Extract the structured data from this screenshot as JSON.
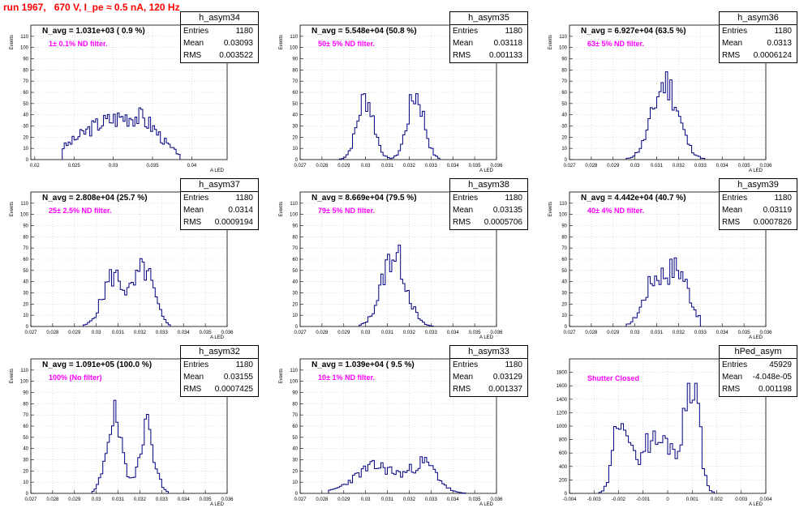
{
  "run_title": "run 1967,   670 V, I_pe ≈ 0.5 nA, 120 Hz",
  "colors": {
    "histogram": "#000080",
    "title": "#ff0000",
    "annotation": "#ff00ff"
  },
  "chart_data": [
    {
      "type": "histogram",
      "name": "h_asym34",
      "n_avg": "N_avg = 1.031e+03 ( 0.9 %)",
      "filter": "1± 0.1% ND filter.",
      "stats": {
        "entries": "1180",
        "mean": "0.03093",
        "rms": "0.003522"
      },
      "ylabel": "Events",
      "xlabel": "A_LED",
      "xlim": [
        0.0195,
        0.0445
      ],
      "ylim": [
        0,
        120
      ],
      "yticks": [
        0,
        10,
        20,
        30,
        40,
        50,
        60,
        70,
        80,
        90,
        100,
        110
      ],
      "xticks": [
        0.02,
        0.025,
        0.03,
        0.035,
        0.04
      ],
      "xtick_labels": [
        "0.02",
        "0.025",
        "0.03",
        "0.035",
        "0.04"
      ],
      "peaks": [
        {
          "c": 0.0295,
          "w": 0.004,
          "h": 33
        },
        {
          "c": 0.034,
          "w": 0.0022,
          "h": 18
        }
      ],
      "bin": 0.00025,
      "range": [
        0.0235,
        0.0385
      ],
      "seed": 3
    },
    {
      "type": "histogram",
      "name": "h_asym35",
      "n_avg": "N_avg = 5.548e+04 (50.8 %)",
      "filter": "50± 5% ND filter.",
      "stats": {
        "entries": "1180",
        "mean": "0.03118",
        "rms": "0.001133"
      },
      "ylabel": "Events",
      "xlabel": "A_LED",
      "xlim": [
        0.027,
        0.036
      ],
      "ylim": [
        0,
        120
      ],
      "yticks": [
        0,
        10,
        20,
        30,
        40,
        50,
        60,
        70,
        80,
        90,
        100,
        110
      ],
      "xticks": [
        0.027,
        0.028,
        0.029,
        0.03,
        0.031,
        0.032,
        0.033,
        0.034,
        0.035,
        0.036
      ],
      "xtick_labels": [
        "0.027",
        "0.028",
        "0.029",
        "0.03",
        "0.031",
        "0.032",
        "0.033",
        "0.034",
        "0.035",
        "0.036"
      ],
      "peaks": [
        {
          "c": 0.03,
          "w": 0.00038,
          "h": 55
        },
        {
          "c": 0.0323,
          "w": 0.00038,
          "h": 58
        }
      ],
      "bin": 0.0001,
      "range": [
        0.0288,
        0.0334
      ],
      "seed": 7
    },
    {
      "type": "histogram",
      "name": "h_asym36",
      "n_avg": "N_avg = 6.927e+04 (63.5 %)",
      "filter": "63± 5% ND filter.",
      "stats": {
        "entries": "1180",
        "mean": "0.0313",
        "rms": "0.0006124"
      },
      "ylabel": "Events",
      "xlabel": "A_LED",
      "xlim": [
        0.027,
        0.036
      ],
      "ylim": [
        0,
        120
      ],
      "yticks": [
        0,
        10,
        20,
        30,
        40,
        50,
        60,
        70,
        80,
        90,
        100,
        110
      ],
      "xticks": [
        0.027,
        0.028,
        0.029,
        0.03,
        0.031,
        0.032,
        0.033,
        0.034,
        0.035,
        0.036
      ],
      "xtick_labels": [
        "0.027",
        "0.028",
        "0.029",
        "0.03",
        "0.031",
        "0.032",
        "0.033",
        "0.034",
        "0.035",
        "0.036"
      ],
      "peaks": [
        {
          "c": 0.0314,
          "w": 0.0006,
          "h": 68
        }
      ],
      "bin": 0.0001,
      "range": [
        0.0296,
        0.0332
      ],
      "seed": 11
    },
    {
      "type": "histogram",
      "name": "h_asym37",
      "n_avg": "N_avg = 2.808e+04 (25.7 %)",
      "filter": "25± 2.5% ND filter.",
      "stats": {
        "entries": "1180",
        "mean": "0.0314",
        "rms": "0.0009194"
      },
      "ylabel": "Events",
      "xlabel": "A_LED",
      "xlim": [
        0.027,
        0.036
      ],
      "ylim": [
        0,
        120
      ],
      "yticks": [
        0,
        10,
        20,
        30,
        40,
        50,
        60,
        70,
        80,
        90,
        100,
        110
      ],
      "xticks": [
        0.027,
        0.028,
        0.029,
        0.03,
        0.031,
        0.032,
        0.033,
        0.034,
        0.035,
        0.036
      ],
      "xtick_labels": [
        "0.027",
        "0.028",
        "0.029",
        "0.03",
        "0.031",
        "0.032",
        "0.033",
        "0.034",
        "0.035",
        "0.036"
      ],
      "peaks": [
        {
          "c": 0.0308,
          "w": 0.0005,
          "h": 45
        },
        {
          "c": 0.0322,
          "w": 0.00045,
          "h": 50
        }
      ],
      "bin": 0.0001,
      "range": [
        0.0294,
        0.0334
      ],
      "seed": 5
    },
    {
      "type": "histogram",
      "name": "h_asym38",
      "n_avg": "N_avg = 8.669e+04 (79.5 %)",
      "filter": "79± 5% ND filter.",
      "stats": {
        "entries": "1180",
        "mean": "0.03135",
        "rms": "0.0005706"
      },
      "ylabel": "Events",
      "xlabel": "A_LED",
      "xlim": [
        0.027,
        0.036
      ],
      "ylim": [
        0,
        120
      ],
      "yticks": [
        0,
        10,
        20,
        30,
        40,
        50,
        60,
        70,
        80,
        90,
        100,
        110
      ],
      "xticks": [
        0.027,
        0.028,
        0.029,
        0.03,
        0.031,
        0.032,
        0.033,
        0.034,
        0.035,
        0.036
      ],
      "xtick_labels": [
        "0.027",
        "0.028",
        "0.029",
        "0.03",
        "0.031",
        "0.032",
        "0.033",
        "0.034",
        "0.035",
        "0.036"
      ],
      "peaks": [
        {
          "c": 0.0313,
          "w": 0.00055,
          "h": 65
        }
      ],
      "bin": 0.0001,
      "range": [
        0.0297,
        0.0331
      ],
      "seed": 13
    },
    {
      "type": "histogram",
      "name": "h_asym39",
      "n_avg": "N_avg = 4.442e+04 (40.7 %)",
      "filter": "40± 4% ND filter.",
      "stats": {
        "entries": "1180",
        "mean": "0.03119",
        "rms": "0.0007826"
      },
      "ylabel": "Events",
      "xlabel": "A_LED",
      "xlim": [
        0.027,
        0.036
      ],
      "ylim": [
        0,
        120
      ],
      "yticks": [
        0,
        10,
        20,
        30,
        40,
        50,
        60,
        70,
        80,
        90,
        100,
        110
      ],
      "xticks": [
        0.027,
        0.028,
        0.029,
        0.03,
        0.031,
        0.032,
        0.033,
        0.034,
        0.035,
        0.036
      ],
      "xtick_labels": [
        "0.027",
        "0.028",
        "0.029",
        "0.03",
        "0.031",
        "0.032",
        "0.033",
        "0.034",
        "0.035",
        "0.036"
      ],
      "peaks": [
        {
          "c": 0.0309,
          "w": 0.0005,
          "h": 40
        },
        {
          "c": 0.032,
          "w": 0.0005,
          "h": 48
        }
      ],
      "bin": 0.0001,
      "range": [
        0.0296,
        0.033
      ],
      "seed": 17
    },
    {
      "type": "histogram",
      "name": "h_asym32",
      "n_avg": "N_avg = 1.091e+05 (100.0 %)",
      "filter": "100% (No filter)",
      "stats": {
        "entries": "1180",
        "mean": "0.03155",
        "rms": "0.0007425"
      },
      "ylabel": "Events",
      "xlabel": "A_LED",
      "xlim": [
        0.027,
        0.036
      ],
      "ylim": [
        0,
        120
      ],
      "yticks": [
        0,
        10,
        20,
        30,
        40,
        50,
        60,
        70,
        80,
        90,
        100,
        110
      ],
      "xticks": [
        0.027,
        0.028,
        0.029,
        0.03,
        0.031,
        0.032,
        0.033,
        0.034,
        0.035,
        0.036
      ],
      "xtick_labels": [
        "0.027",
        "0.028",
        "0.029",
        "0.03",
        "0.031",
        "0.032",
        "0.033",
        "0.034",
        "0.035",
        "0.036"
      ],
      "peaks": [
        {
          "c": 0.0308,
          "w": 0.00035,
          "h": 68
        },
        {
          "c": 0.0323,
          "w": 0.00035,
          "h": 60
        }
      ],
      "bin": 0.0001,
      "range": [
        0.0298,
        0.0333
      ],
      "seed": 19
    },
    {
      "type": "histogram",
      "name": "h_asym33",
      "n_avg": "N_avg = 1.039e+04 ( 9.5 %)",
      "filter": "10± 1% ND filter.",
      "stats": {
        "entries": "1180",
        "mean": "0.03129",
        "rms": "0.001337"
      },
      "ylabel": "Events",
      "xlabel": "A_LED",
      "xlim": [
        0.027,
        0.036
      ],
      "ylim": [
        0,
        120
      ],
      "yticks": [
        0,
        10,
        20,
        30,
        40,
        50,
        60,
        70,
        80,
        90,
        100,
        110
      ],
      "xticks": [
        0.027,
        0.028,
        0.029,
        0.03,
        0.031,
        0.032,
        0.033,
        0.034,
        0.035,
        0.036
      ],
      "xtick_labels": [
        "0.027",
        "0.028",
        "0.029",
        "0.03",
        "0.031",
        "0.032",
        "0.033",
        "0.034",
        "0.035",
        "0.036"
      ],
      "peaks": [
        {
          "c": 0.0305,
          "w": 0.001,
          "h": 24
        },
        {
          "c": 0.0327,
          "w": 0.0006,
          "h": 25
        }
      ],
      "bin": 0.0001,
      "range": [
        0.0283,
        0.0346
      ],
      "seed": 23
    },
    {
      "type": "histogram",
      "name": "hPed_asym",
      "n_avg": "",
      "filter": "Shutter Closed",
      "stats": {
        "entries": "45929",
        "mean": "-4.048e-05",
        "rms": "0.001198"
      },
      "ylabel": "",
      "xlabel": "A_LED",
      "xlim": [
        -0.004,
        0.004
      ],
      "ylim": [
        0,
        2000
      ],
      "yticks": [
        0,
        200,
        400,
        600,
        800,
        1000,
        1200,
        1400,
        1600,
        1800
      ],
      "xticks": [
        -0.004,
        -0.003,
        -0.002,
        -0.001,
        0,
        0.001,
        0.002,
        0.003,
        0.004
      ],
      "xtick_labels": [
        "-0.004",
        "-0.003",
        "-0.002",
        "-0.001",
        "0",
        "0.001",
        "0.002",
        "0.003",
        "0.004"
      ],
      "peaks": [
        {
          "c": -0.0019,
          "w": 0.00028,
          "h": 1250
        },
        {
          "c": -0.0008,
          "w": 0.00045,
          "h": 720
        },
        {
          "c": 0.0001,
          "w": 0.0004,
          "h": 620
        },
        {
          "c": 0.001,
          "w": 0.00028,
          "h": 1750
        }
      ],
      "bin": 0.0001,
      "range": [
        -0.0028,
        0.0019
      ],
      "seed": 29
    }
  ]
}
